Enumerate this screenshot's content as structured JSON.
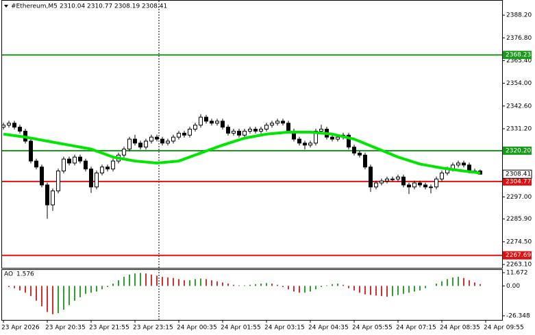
{
  "chart_data": {
    "type": "candlestick",
    "title": "#Ethereum,M5",
    "up_color": "#ffffff",
    "down_color": "#000000",
    "outline_color": "#000000",
    "open": [
      2332,
      2333,
      2334,
      2332,
      2330,
      2325,
      2315,
      2312,
      2303,
      2293,
      2300,
      2310,
      2316,
      2314,
      2317,
      2315,
      2311,
      2302,
      2309,
      2312,
      2311,
      2315,
      2318,
      2321,
      2326,
      2324,
      2322,
      2325,
      2327,
      2326,
      2324,
      2325,
      2327,
      2329,
      2328,
      2331,
      2333,
      2337,
      2335,
      2334,
      2335,
      2332,
      2329,
      2330,
      2328,
      2330,
      2331,
      2330,
      2331,
      2333,
      2334,
      2335,
      2334,
      2330,
      2326,
      2324,
      2323,
      2324,
      2330,
      2331,
      2327,
      2326,
      2327,
      2328,
      2322,
      2319,
      2318,
      2312,
      2302,
      2304,
      2305,
      2306,
      2306,
      2307,
      2303,
      2302,
      2304,
      2303,
      2302,
      2302,
      2306,
      2309,
      2311,
      2313,
      2314,
      2313,
      2310,
      2310.04
    ],
    "high": [
      2334.2,
      2335.2,
      2335.2,
      2333.2,
      2331.2,
      2326.2,
      2316.2,
      2313.2,
      2304.2,
      2301.2,
      2311.2,
      2317.2,
      2317.2,
      2318.2,
      2318.2,
      2316.2,
      2312.2,
      2310.2,
      2313.2,
      2313.2,
      2316.2,
      2319.2,
      2322.2,
      2327.2,
      2328.2,
      2325.2,
      2326.2,
      2328.2,
      2328.2,
      2327.2,
      2326.2,
      2328.2,
      2330.2,
      2330.2,
      2332.2,
      2334.2,
      2338.5,
      2338.2,
      2336.2,
      2336.2,
      2336.2,
      2333.2,
      2331.2,
      2331.2,
      2331.2,
      2332.2,
      2332.2,
      2332.2,
      2334.2,
      2335.2,
      2336.2,
      2336.2,
      2335.2,
      2331.2,
      2327.2,
      2325.2,
      2325.2,
      2331.2,
      2333.2,
      2332.2,
      2328.2,
      2328.2,
      2329.2,
      2329.2,
      2323.2,
      2320.2,
      2319.2,
      2313.2,
      2305.2,
      2306.2,
      2307.2,
      2307.2,
      2308.2,
      2308.2,
      2304.2,
      2305.2,
      2305.2,
      2304.2,
      2303.2,
      2307.2,
      2310.2,
      2312.2,
      2314.2,
      2315.2,
      2315.2,
      2314.2,
      2311.2,
      2310.77
    ],
    "low": [
      2330.8,
      2331.8,
      2330.8,
      2328.8,
      2323.8,
      2313.8,
      2310.8,
      2301.8,
      2286,
      2290,
      2298.8,
      2308.8,
      2312.8,
      2312.8,
      2313.8,
      2309.8,
      2299,
      2300.8,
      2307.8,
      2309.8,
      2309.8,
      2313.8,
      2316.8,
      2319.8,
      2322.8,
      2320.8,
      2320.8,
      2323.8,
      2324.8,
      2322.8,
      2322.8,
      2323.8,
      2325.8,
      2326.8,
      2326.8,
      2329.8,
      2331.8,
      2333.8,
      2332.8,
      2332.8,
      2330.8,
      2327.8,
      2327.8,
      2326.8,
      2326.8,
      2328.8,
      2328.8,
      2328.8,
      2329.8,
      2331.8,
      2332.8,
      2332.8,
      2328.8,
      2324.8,
      2322.8,
      2320.8,
      2321.8,
      2322.8,
      2328.8,
      2325.8,
      2324.8,
      2324.8,
      2325.8,
      2320.8,
      2317.8,
      2316.8,
      2310.8,
      2299.5,
      2300.8,
      2302.8,
      2303.8,
      2304.8,
      2304.8,
      2301.8,
      2298.5,
      2300.8,
      2301.8,
      2300.8,
      2298.8,
      2300.8,
      2304.8,
      2307.8,
      2309.8,
      2311.8,
      2311.8,
      2308.8,
      2308.8,
      2308.19
    ],
    "close": [
      2333,
      2334,
      2332,
      2330,
      2325,
      2315,
      2312,
      2303,
      2293,
      2300,
      2310,
      2316,
      2314,
      2317,
      2315,
      2311,
      2302,
      2309,
      2312,
      2311,
      2315,
      2318,
      2321,
      2326,
      2324,
      2322,
      2325,
      2327,
      2326,
      2324,
      2325,
      2327,
      2329,
      2328,
      2331,
      2333,
      2337,
      2335,
      2334,
      2335,
      2332,
      2329,
      2330,
      2328,
      2330,
      2331,
      2330,
      2331,
      2333,
      2334,
      2335,
      2334,
      2330,
      2326,
      2324,
      2323,
      2324,
      2330,
      2331,
      2327,
      2326,
      2327,
      2328,
      2322,
      2319,
      2318,
      2312,
      2302,
      2304,
      2305,
      2306,
      2306,
      2307,
      2303,
      2302,
      2304,
      2303,
      2302,
      2302,
      2306,
      2309,
      2311,
      2313,
      2314,
      2313,
      2310,
      2310,
      2308.41
    ],
    "xlim": [
      -0.625,
      91
    ],
    "xticks": [
      {
        "value": 0,
        "label": "23 Apr 2026"
      },
      {
        "value": 8,
        "label": "23 Apr 20:35"
      },
      {
        "value": 16,
        "label": "23 Apr 21:55"
      },
      {
        "value": 24,
        "label": "23 Apr 23:15"
      },
      {
        "value": 32,
        "label": "24 Apr 00:35"
      },
      {
        "value": 40,
        "label": "24 Apr 01:55"
      },
      {
        "value": 48,
        "label": "24 Apr 03:15"
      },
      {
        "value": 56,
        "label": "24 Apr 04:35"
      },
      {
        "value": 64,
        "label": "24 Apr 05:55"
      },
      {
        "value": 72,
        "label": "24 Apr 07:15"
      },
      {
        "value": 80,
        "label": "24 Apr 08:35"
      },
      {
        "value": 88,
        "label": "24 Apr 09:55"
      }
    ],
    "ylim": [
      2261.4,
      2395.8
    ],
    "yticks": [
      {
        "value": 2388.2,
        "label": "2388.20"
      },
      {
        "value": 2376.8,
        "label": "2376.80"
      },
      {
        "value": 2365.4,
        "label": "2365.40"
      },
      {
        "value": 2354,
        "label": "2354.00"
      },
      {
        "value": 2342.6,
        "label": "2342.60"
      },
      {
        "value": 2331.2,
        "label": "2331.20"
      },
      {
        "value": 2297,
        "label": "2297.00"
      },
      {
        "value": 2285.9,
        "label": "2285.90"
      },
      {
        "value": 2274.5,
        "label": "2274.50"
      },
      {
        "value": 2263.1,
        "label": "2263.10"
      }
    ],
    "grid": false,
    "ma": {
      "color": "#00e600",
      "x": [
        0,
        4,
        8,
        12,
        16,
        20,
        24,
        28,
        32,
        36,
        40,
        44,
        48,
        52,
        56,
        60,
        64,
        68,
        72,
        76,
        80,
        84,
        87
      ],
      "values": [
        2328.5,
        2327,
        2325,
        2323,
        2321,
        2317,
        2315,
        2314,
        2315,
        2319,
        2323,
        2326.5,
        2328.5,
        2329.5,
        2329.5,
        2328.5,
        2326,
        2321.5,
        2317,
        2313.5,
        2311.5,
        2310,
        2309
      ]
    },
    "levels": [
      {
        "value": 2368.23,
        "label": "2368.23",
        "color": "#1a9a1a"
      },
      {
        "value": 2320.2,
        "label": "2320.20",
        "color": "#1a9a1a"
      },
      {
        "value": 2304.77,
        "label": "2304.77",
        "color": "#e01010"
      },
      {
        "value": 2267.69,
        "label": "2267.69",
        "color": "#e01010"
      }
    ],
    "indicator": {
      "type": "bar",
      "name": "AO",
      "up_color": "#2e9e2e",
      "down_color": "#d03030",
      "values": [
        0,
        -1,
        -2,
        -4,
        -6,
        -9,
        -13,
        -18,
        -23,
        -25,
        -24,
        -21,
        -17,
        -13,
        -10,
        -7,
        -6,
        -5,
        -3,
        -1,
        2,
        5,
        8,
        10,
        11,
        11.5,
        11,
        10,
        9,
        8,
        7.5,
        7,
        6,
        5,
        5,
        6,
        6.5,
        6,
        5,
        4,
        3,
        2,
        1,
        0.5,
        0.5,
        1,
        1.5,
        2,
        2.5,
        2,
        1,
        -1,
        -3,
        -5,
        -6,
        -6,
        -5,
        -3,
        -1,
        0.5,
        1.5,
        2,
        1,
        -2,
        -4,
        -6,
        -7.5,
        -8,
        -8.5,
        -9,
        -9.5,
        -9,
        -8,
        -7,
        -6,
        -5,
        -4,
        -2,
        0,
        2,
        4,
        6,
        7.5,
        8,
        7,
        5,
        3,
        1.576
      ],
      "ylim": [
        -30,
        14.7
      ],
      "yticks": [
        11.672,
        {
          "value": 0,
          "label": "0.00"
        },
        -26.348
      ]
    }
  }
}
